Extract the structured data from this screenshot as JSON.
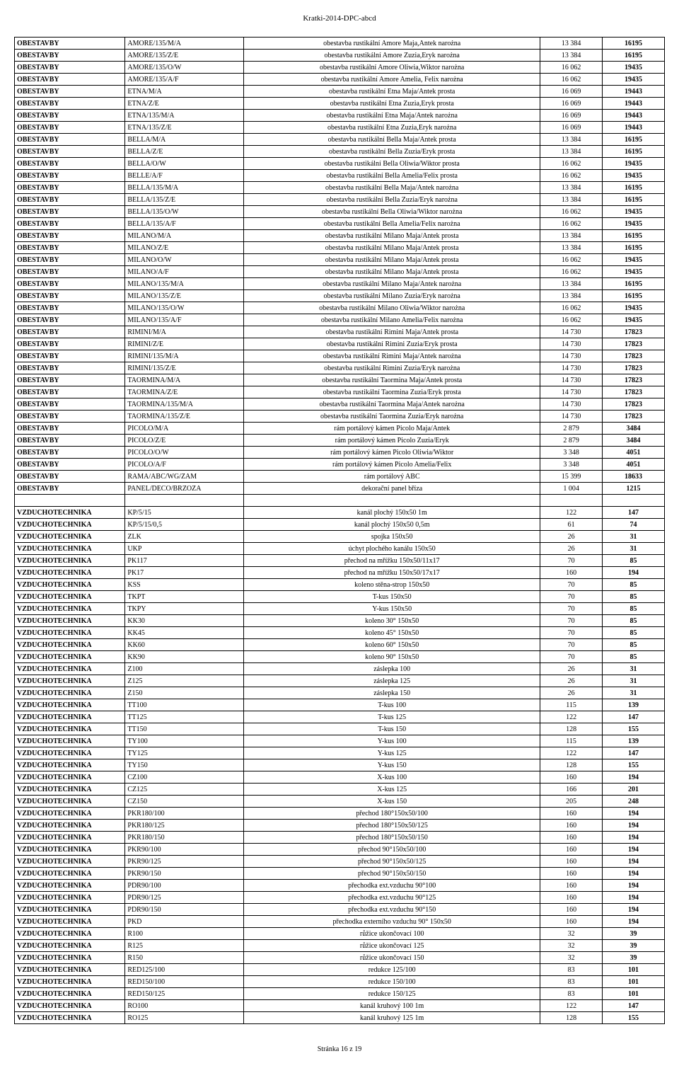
{
  "header": "Kratki-2014-DPC-abcd",
  "footer": "Stránka 16 z 19",
  "rows": [
    [
      "OBESTAVBY",
      "AMORE/135/M/A",
      "obestavba rustikální Amore Maja,Antek narożna",
      "13 384",
      "16195"
    ],
    [
      "OBESTAVBY",
      "AMORE/135/Z/E",
      "obestavba rustikální Amore Zuzia,Eryk narożna",
      "13 384",
      "16195"
    ],
    [
      "OBESTAVBY",
      "AMORE/135/O/W",
      "obestavba rustikální Amore Oliwia,Wiktor narożna",
      "16 062",
      "19435"
    ],
    [
      "OBESTAVBY",
      "AMORE/135/A/F",
      "obestavba rustikální Amore Amelia, Felix narożna",
      "16 062",
      "19435"
    ],
    [
      "OBESTAVBY",
      "ETNA/M/A",
      "obestavba rustikální Etna Maja/Antek prosta",
      "16 069",
      "19443"
    ],
    [
      "OBESTAVBY",
      "ETNA/Z/E",
      "obestavba rustikální Etna  Zuzia,Eryk prosta",
      "16 069",
      "19443"
    ],
    [
      "OBESTAVBY",
      "ETNA/135/M/A",
      "obestavba rustikální Etna  Maja/Antek narożna",
      "16 069",
      "19443"
    ],
    [
      "OBESTAVBY",
      "ETNA/135/Z/E",
      "obestavba rustikální Etna  Zuzia,Eryk narożna",
      "16 069",
      "19443"
    ],
    [
      "OBESTAVBY",
      "BELLA/M/A",
      "obestavba rustikální Bella Maja/Antek prosta",
      "13 384",
      "16195"
    ],
    [
      "OBESTAVBY",
      "BELLA/Z/E",
      "obestavba rustikální Bella Zuzia/Eryk prosta",
      "13 384",
      "16195"
    ],
    [
      "OBESTAVBY",
      "BELLA/O/W",
      "obestavba rustikální Bella Oliwia/Wiktor prosta",
      "16 062",
      "19435"
    ],
    [
      "OBESTAVBY",
      "BELLE/A/F",
      "obestavba rustikální Bella Amelia/Felix prosta",
      "16 062",
      "19435"
    ],
    [
      "OBESTAVBY",
      "BELLA/135/M/A",
      "obestavba rustikální Bella Maja/Antek narożna",
      "13 384",
      "16195"
    ],
    [
      "OBESTAVBY",
      "BELLA/135/Z/E",
      "obestavba rustikální Bella Zuzia/Eryk narożna",
      "13 384",
      "16195"
    ],
    [
      "OBESTAVBY",
      "BELLA/135/O/W",
      "obestavba rustikální Bella Oliwia/Wiktor narożna",
      "16 062",
      "19435"
    ],
    [
      "OBESTAVBY",
      "BELLA/135/A/F",
      "obestavba rustikální Bella Amelia/Felix narożna",
      "16 062",
      "19435"
    ],
    [
      "OBESTAVBY",
      "MILANO/M/A",
      "obestavba rustikální Milano Maja/Antek prosta",
      "13 384",
      "16195"
    ],
    [
      "OBESTAVBY",
      "MILANO/Z/E",
      "obestavba rustikální Milano Maja/Antek prosta",
      "13 384",
      "16195"
    ],
    [
      "OBESTAVBY",
      "MILANO/O/W",
      "obestavba rustikální Milano Maja/Antek prosta",
      "16 062",
      "19435"
    ],
    [
      "OBESTAVBY",
      "MILANO/A/F",
      "obestavba rustikální Milano Maja/Antek prosta",
      "16 062",
      "19435"
    ],
    [
      "OBESTAVBY",
      "MILANO/135/M/A",
      "obestavba rustikální Milano Maja/Antek narożna",
      "13 384",
      "16195"
    ],
    [
      "OBESTAVBY",
      "MILANO/135/Z/E",
      "obestavba rustikální Milano Zuzia/Eryk narożna",
      "13 384",
      "16195"
    ],
    [
      "OBESTAVBY",
      "MILANO/135/O/W",
      "obestavba rustikální Milano Oliwia/Wiktor narożna",
      "16 062",
      "19435"
    ],
    [
      "OBESTAVBY",
      "MILANO/135/A/F",
      "obestavba rustikální Milano Amelia/Felix narożna",
      "16 062",
      "19435"
    ],
    [
      "OBESTAVBY",
      "RIMINI/M/A",
      "obestavba rustikální Rimini Maja/Antek prosta",
      "14 730",
      "17823"
    ],
    [
      "OBESTAVBY",
      "RIMINI/Z/E",
      "obestavba rustikální Rimini Zuzia/Eryk prosta",
      "14 730",
      "17823"
    ],
    [
      "OBESTAVBY",
      "RIMINI/135/M/A",
      "obestavba rustikální Rimini Maja/Antek narożna",
      "14 730",
      "17823"
    ],
    [
      "OBESTAVBY",
      "RIMINI/135/Z/E",
      "obestavba rustikální Rimini Zuzia/Eryk narożna",
      "14 730",
      "17823"
    ],
    [
      "OBESTAVBY",
      "TAORMINA/M/A",
      "obestavba rustikální Taormina Maja/Antek prosta",
      "14 730",
      "17823"
    ],
    [
      "OBESTAVBY",
      "TAORMINA/Z/E",
      "obestavba rustikální Taormina Zuzia/Eryk prosta",
      "14 730",
      "17823"
    ],
    [
      "OBESTAVBY",
      "TAORMINA/135/M/A",
      "obestavba rustikální Taormina Maja/Antek narożna",
      "14 730",
      "17823"
    ],
    [
      "OBESTAVBY",
      "TAORMINA/135/Z/E",
      "obestavba rustikální Taormina Zuzia/Eryk narożna",
      "14 730",
      "17823"
    ],
    [
      "OBESTAVBY",
      "PICOLO/M/A",
      "rám portálový kámen Picolo Maja/Antek",
      "2 879",
      "3484"
    ],
    [
      "OBESTAVBY",
      "PICOLO/Z/E",
      "rám portálový kámen Picolo Zuzia/Eryk",
      "2 879",
      "3484"
    ],
    [
      "OBESTAVBY",
      "PICOLO/O/W",
      "rám portálový kámen Picolo Oliwia/Wiktor",
      "3 348",
      "4051"
    ],
    [
      "OBESTAVBY",
      "PICOLO/A/F",
      "rám portálový kámen Picolo Amelia/Felix",
      "3 348",
      "4051"
    ],
    [
      "OBESTAVBY",
      "RAMA/ABC/WG/ZAM",
      "rám portálový ABC",
      "15 399",
      "18633"
    ],
    [
      "OBESTAVBY",
      "PANEL/DECO/BRZOZA",
      "dekorační panel bříza",
      "1 004",
      "1215"
    ],
    [
      "",
      "",
      "",
      "",
      ""
    ],
    [
      "VZDUCHOTECHNIKA",
      "KP/5/15",
      "kanál plochý 150x50 1m",
      "122",
      "147"
    ],
    [
      "VZDUCHOTECHNIKA",
      "KP/5/15/0,5",
      "kanál plochý 150x50 0,5m",
      "61",
      "74"
    ],
    [
      "VZDUCHOTECHNIKA",
      "ZLK",
      "spojka 150x50",
      "26",
      "31"
    ],
    [
      "VZDUCHOTECHNIKA",
      "UKP",
      "úchyt plochého kanálu 150x50",
      "26",
      "31"
    ],
    [
      "VZDUCHOTECHNIKA",
      "PK117",
      "přechod na mřížku 150x50/11x17",
      "70",
      "85"
    ],
    [
      "VZDUCHOTECHNIKA",
      "PK17",
      "přechod na mřížku 150x50/17x17",
      "160",
      "194"
    ],
    [
      "VZDUCHOTECHNIKA",
      "KSS",
      "koleno stěna-strop 150x50",
      "70",
      "85"
    ],
    [
      "VZDUCHOTECHNIKA",
      "TKPT",
      "T-kus 150x50",
      "70",
      "85"
    ],
    [
      "VZDUCHOTECHNIKA",
      "TKPY",
      "Y-kus 150x50",
      "70",
      "85"
    ],
    [
      "VZDUCHOTECHNIKA",
      "KK30",
      "koleno 30° 150x50",
      "70",
      "85"
    ],
    [
      "VZDUCHOTECHNIKA",
      "KK45",
      "koleno 45° 150x50",
      "70",
      "85"
    ],
    [
      "VZDUCHOTECHNIKA",
      "KK60",
      "koleno 60° 150x50",
      "70",
      "85"
    ],
    [
      "VZDUCHOTECHNIKA",
      "KK90",
      "koleno 90° 150x50",
      "70",
      "85"
    ],
    [
      "VZDUCHOTECHNIKA",
      "Z100",
      "záslepka 100",
      "26",
      "31"
    ],
    [
      "VZDUCHOTECHNIKA",
      "Z125",
      "záslepka 125",
      "26",
      "31"
    ],
    [
      "VZDUCHOTECHNIKA",
      "Z150",
      "záslepka 150",
      "26",
      "31"
    ],
    [
      "VZDUCHOTECHNIKA",
      "TT100",
      "T-kus 100",
      "115",
      "139"
    ],
    [
      "VZDUCHOTECHNIKA",
      "TT125",
      "T-kus 125",
      "122",
      "147"
    ],
    [
      "VZDUCHOTECHNIKA",
      "TT150",
      "T-kus 150",
      "128",
      "155"
    ],
    [
      "VZDUCHOTECHNIKA",
      "TY100",
      "Y-kus 100",
      "115",
      "139"
    ],
    [
      "VZDUCHOTECHNIKA",
      "TY125",
      "Y-kus 125",
      "122",
      "147"
    ],
    [
      "VZDUCHOTECHNIKA",
      "TY150",
      "Y-kus 150",
      "128",
      "155"
    ],
    [
      "VZDUCHOTECHNIKA",
      "CZ100",
      "X-kus 100",
      "160",
      "194"
    ],
    [
      "VZDUCHOTECHNIKA",
      "CZ125",
      "X-kus 125",
      "166",
      "201"
    ],
    [
      "VZDUCHOTECHNIKA",
      "CZ150",
      "X-kus 150",
      "205",
      "248"
    ],
    [
      "VZDUCHOTECHNIKA",
      "PKR180/100",
      "přechod 180°150x50/100",
      "160",
      "194"
    ],
    [
      "VZDUCHOTECHNIKA",
      "PKR180/125",
      "přechod 180°150x50/125",
      "160",
      "194"
    ],
    [
      "VZDUCHOTECHNIKA",
      "PKR180/150",
      "přechod 180°150x50/150",
      "160",
      "194"
    ],
    [
      "VZDUCHOTECHNIKA",
      "PKR90/100",
      "přechod 90°150x50/100",
      "160",
      "194"
    ],
    [
      "VZDUCHOTECHNIKA",
      "PKR90/125",
      "přechod 90°150x50/125",
      "160",
      "194"
    ],
    [
      "VZDUCHOTECHNIKA",
      "PKR90/150",
      "přechod 90°150x50/150",
      "160",
      "194"
    ],
    [
      "VZDUCHOTECHNIKA",
      "PDR90/100",
      "přechodka ext.vzduchu 90°100",
      "160",
      "194"
    ],
    [
      "VZDUCHOTECHNIKA",
      "PDR90/125",
      "přechodka ext.vzduchu 90°125",
      "160",
      "194"
    ],
    [
      "VZDUCHOTECHNIKA",
      "PDR90/150",
      "přechodka ext.vzduchu 90°150",
      "160",
      "194"
    ],
    [
      "VZDUCHOTECHNIKA",
      "PKD",
      "přechodka externího vzduchu 90° 150x50",
      "160",
      "194"
    ],
    [
      "VZDUCHOTECHNIKA",
      "R100",
      "růžice ukončovací 100",
      "32",
      "39"
    ],
    [
      "VZDUCHOTECHNIKA",
      "R125",
      "růžice ukončovací 125",
      "32",
      "39"
    ],
    [
      "VZDUCHOTECHNIKA",
      "R150",
      "růžice ukončovací 150",
      "32",
      "39"
    ],
    [
      "VZDUCHOTECHNIKA",
      "RED125/100",
      "redukce 125/100",
      "83",
      "101"
    ],
    [
      "VZDUCHOTECHNIKA",
      "RED150/100",
      "redukce 150/100",
      "83",
      "101"
    ],
    [
      "VZDUCHOTECHNIKA",
      "RED150/125",
      "redukce 150/125",
      "83",
      "101"
    ],
    [
      "VZDUCHOTECHNIKA",
      "RO100",
      "kanál kruhový 100 1m",
      "122",
      "147"
    ],
    [
      "VZDUCHOTECHNIKA",
      "RO125",
      "kanál kruhový 125 1m",
      "128",
      "155"
    ]
  ]
}
